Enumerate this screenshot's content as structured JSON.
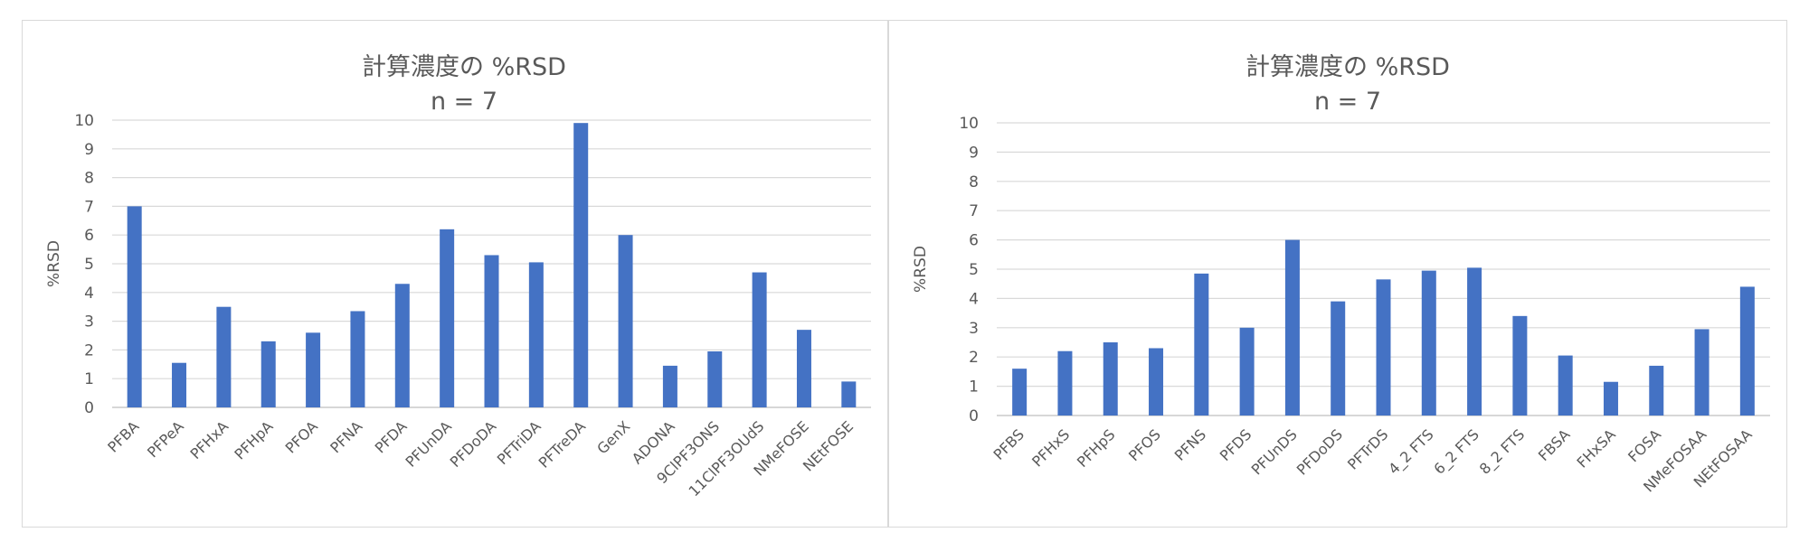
{
  "chart_data": [
    {
      "type": "bar",
      "title": "計算濃度の %RSD",
      "subtitle": "n = 7",
      "xlabel": "",
      "ylabel": "%RSD",
      "ylim": [
        0,
        10
      ],
      "yticks": [
        0,
        1,
        2,
        3,
        4,
        5,
        6,
        7,
        8,
        9,
        10
      ],
      "grid": true,
      "legend": "none",
      "bar_color": "#4472c4",
      "categories": [
        "PFBA",
        "PFPeA",
        "PFHxA",
        "PFHpA",
        "PFOA",
        "PFNA",
        "PFDA",
        "PFUnDA",
        "PFDoDA",
        "PFTriDA",
        "PFTreDA",
        "GenX",
        "ADONA",
        "9ClPF3ONS",
        "11ClPF3OUdS",
        "NMeFOSE",
        "NEtFOSE"
      ],
      "values": [
        7.0,
        1.55,
        3.5,
        2.3,
        2.6,
        3.35,
        4.3,
        6.2,
        5.3,
        5.05,
        9.9,
        6.0,
        1.45,
        1.95,
        4.7,
        2.7,
        0.9
      ]
    },
    {
      "type": "bar",
      "title": "計算濃度の %RSD",
      "subtitle": "n = 7",
      "xlabel": "",
      "ylabel": "%RSD",
      "ylim": [
        0,
        10
      ],
      "yticks": [
        0,
        1,
        2,
        3,
        4,
        5,
        6,
        7,
        8,
        9,
        10
      ],
      "grid": true,
      "legend": "none",
      "bar_color": "#4472c4",
      "categories": [
        "PFBS",
        "PFHxS",
        "PFHpS",
        "PFOS",
        "PFNS",
        "PFDS",
        "PFUnDS",
        "PFDoDS",
        "PFTrDS",
        "4_2 FTS",
        "6_2 FTS",
        "8_2 FTS",
        "FBSA",
        "FHxSA",
        "FOSA",
        "NMeFOSAA",
        "NEtFOSAA"
      ],
      "values": [
        1.6,
        2.2,
        2.5,
        2.3,
        4.85,
        3.0,
        6.0,
        3.9,
        4.65,
        4.95,
        5.05,
        3.4,
        2.05,
        1.15,
        1.7,
        2.95,
        4.4
      ]
    }
  ]
}
